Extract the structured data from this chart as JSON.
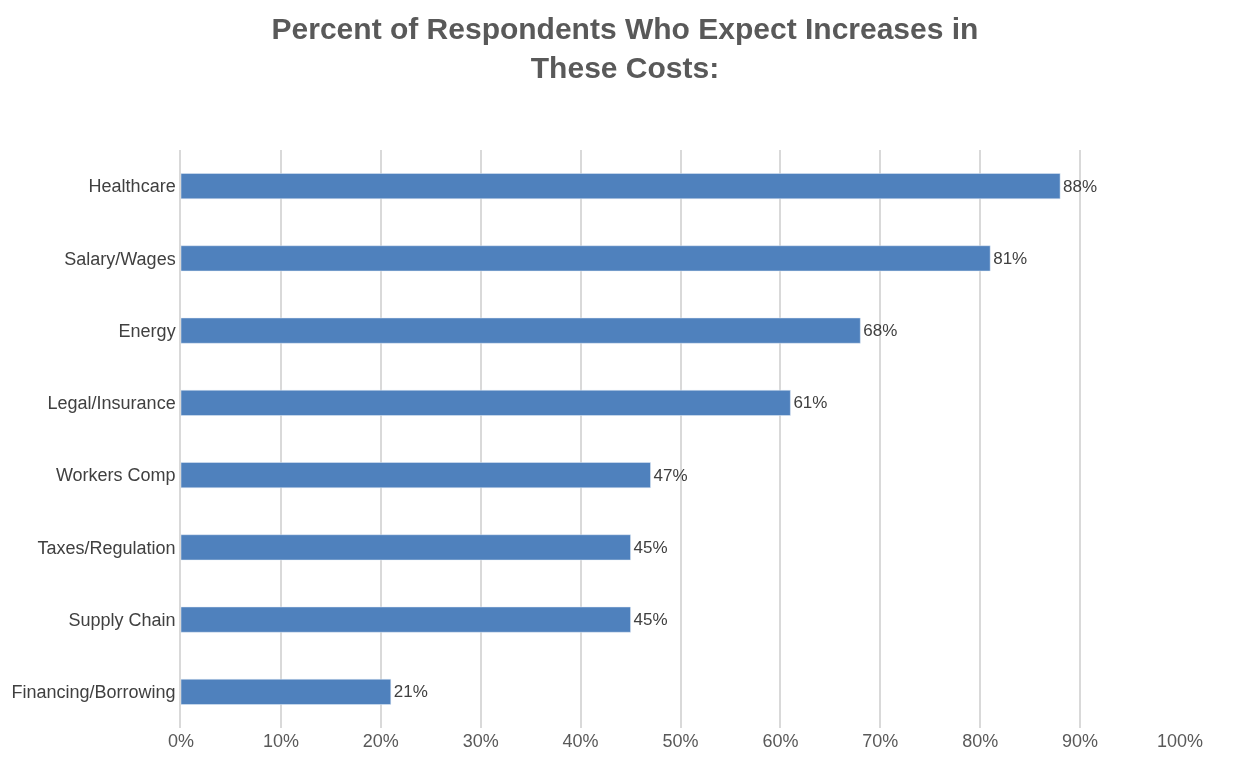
{
  "chart_data": {
    "type": "bar",
    "orientation": "horizontal",
    "title": "Percent of Respondents Who Expect Increases in These Costs:",
    "categories": [
      "Healthcare",
      "Salary/Wages",
      "Energy",
      "Legal/Insurance",
      "Workers Comp",
      "Taxes/Regulation",
      "Supply Chain",
      "Financing/Borrowing"
    ],
    "values": [
      88,
      81,
      68,
      61,
      47,
      45,
      45,
      21
    ],
    "value_labels": [
      "88%",
      "81%",
      "68%",
      "61%",
      "47%",
      "45%",
      "45%",
      "21%"
    ],
    "color": "#4f81bd",
    "xlim": [
      0,
      100
    ],
    "xticks": [
      {
        "value": 0,
        "label": "0%"
      },
      {
        "value": 10,
        "label": "10%"
      },
      {
        "value": 20,
        "label": "20%"
      },
      {
        "value": 30,
        "label": "30%"
      },
      {
        "value": 40,
        "label": "40%"
      },
      {
        "value": 50,
        "label": "50%"
      },
      {
        "value": 60,
        "label": "60%"
      },
      {
        "value": 70,
        "label": "70%"
      },
      {
        "value": 80,
        "label": "80%"
      },
      {
        "value": 90,
        "label": "90%"
      },
      {
        "value": 100,
        "label": "100%"
      }
    ],
    "grid": "x"
  }
}
